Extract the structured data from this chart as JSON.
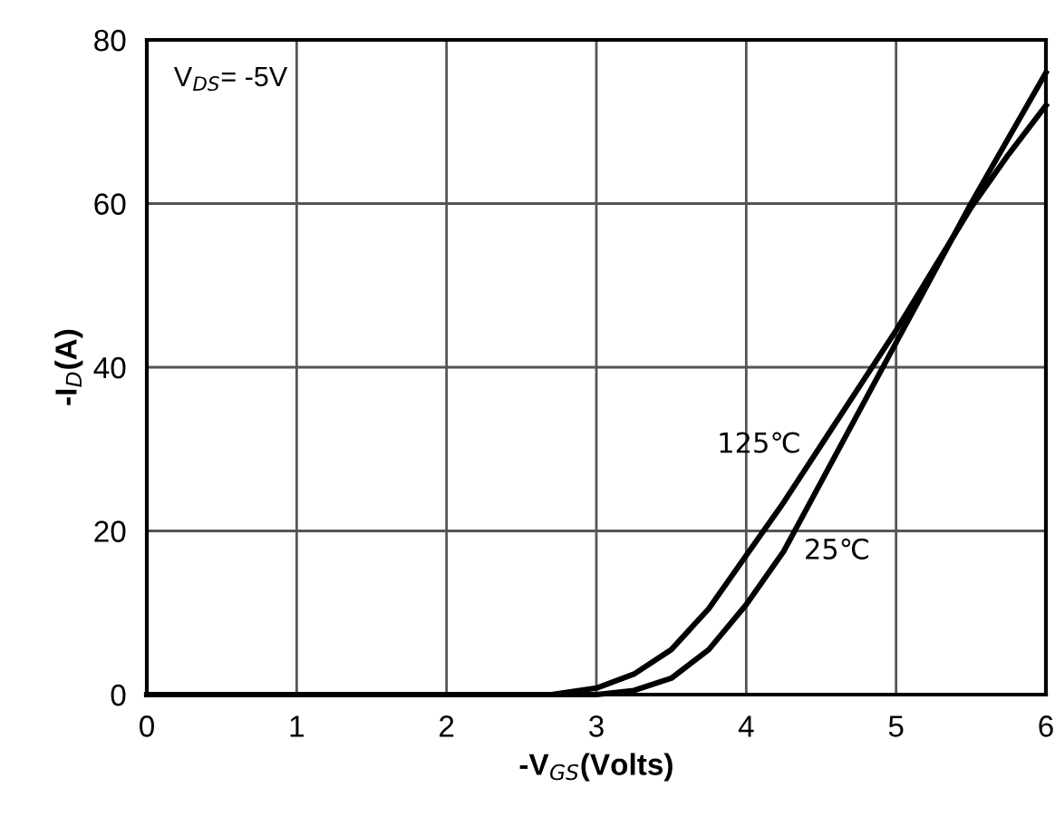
{
  "chart_data": {
    "type": "line",
    "xlabel": "-V$_{GS}$(Volts)",
    "ylabel": "-I$_{D}$(A)",
    "annotations": [
      "V$_{DS}$= -5V"
    ],
    "xlim": [
      0,
      6
    ],
    "ylim": [
      0,
      80
    ],
    "xticks": [
      0,
      1,
      2,
      3,
      4,
      5,
      6
    ],
    "yticks": [
      0,
      20,
      40,
      60,
      80
    ],
    "grid": true,
    "legend": false,
    "marker": "none",
    "line_style": "solid",
    "series": [
      {
        "name": "125℃",
        "color": "#000000",
        "x": [
          0,
          1,
          2,
          2.7,
          3.0,
          3.25,
          3.5,
          3.75,
          4.0,
          4.25,
          4.5,
          4.75,
          5.0,
          5.25,
          5.5,
          5.75,
          6.0
        ],
        "values": [
          0,
          0,
          0,
          0,
          0.8,
          2.5,
          5.5,
          10.5,
          17,
          23.5,
          30.5,
          37.5,
          44.5,
          52,
          59.5,
          66,
          72
        ]
      },
      {
        "name": "25℃",
        "color": "#000000",
        "x": [
          0,
          1,
          2,
          3.0,
          3.25,
          3.5,
          3.75,
          4.0,
          4.25,
          4.5,
          4.75,
          5.0,
          5.25,
          5.5,
          5.75,
          6.0
        ],
        "values": [
          0,
          0,
          0,
          0,
          0.5,
          2,
          5.5,
          11,
          17.5,
          26,
          34.5,
          43,
          51.5,
          60,
          68,
          76
        ]
      }
    ]
  }
}
